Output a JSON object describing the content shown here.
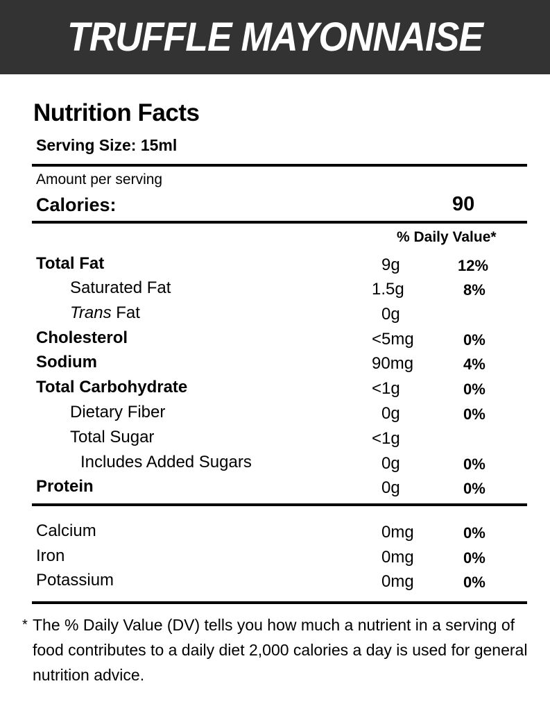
{
  "header": {
    "title": "TRUFFLE MAYONNAISE"
  },
  "label": {
    "title": "Nutrition Facts",
    "serving_size": "Serving Size: 15ml",
    "amount_per_serving": "Amount per serving",
    "calories_label": "Calories:",
    "calories_value": "90",
    "dv_header": "% Daily Value*"
  },
  "nutrients": [
    {
      "name": "Total Fat",
      "amount": "9g",
      "dv": "12%"
    },
    {
      "name": "Saturated Fat",
      "amount": "1.5g",
      "dv": "8%"
    },
    {
      "name_italic": "Trans",
      "name_rest": " Fat",
      "amount": "0g",
      "dv": ""
    },
    {
      "name": "Cholesterol",
      "amount": "<5mg",
      "dv": "0%"
    },
    {
      "name": "Sodium",
      "amount": "90mg",
      "dv": "4%"
    },
    {
      "name": "Total Carbohydrate",
      "amount": "<1g",
      "dv": "0%"
    },
    {
      "name": "Dietary Fiber",
      "amount": "0g",
      "dv": "0%"
    },
    {
      "name": "Total Sugar",
      "amount": "<1g",
      "dv": ""
    },
    {
      "name": "Includes Added Sugars",
      "amount": "0g",
      "dv": "0%"
    },
    {
      "name": "Protein",
      "amount": "0g",
      "dv": "0%"
    }
  ],
  "minerals": [
    {
      "name": "Calcium",
      "amount": "0mg",
      "dv": "0%"
    },
    {
      "name": "Iron",
      "amount": "0mg",
      "dv": "0%"
    },
    {
      "name": "Potassium",
      "amount": "0mg",
      "dv": "0%"
    }
  ],
  "footnote": {
    "star": "*",
    "text": "The % Daily Value (DV) tells you how much a nutrient in a serving of food contributes to a daily diet 2,000 calories a day  is used for general nutrition advice."
  }
}
